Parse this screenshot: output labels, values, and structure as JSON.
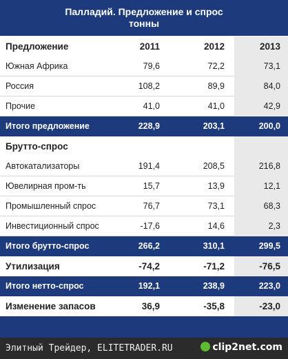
{
  "header": {
    "title": "Палладий. Предложение и спрос",
    "subtitle": "тонны"
  },
  "table": {
    "columns": [
      "Предложение",
      "2011",
      "2012",
      "2013"
    ],
    "rows": [
      [
        "Южная Африка",
        "79,6",
        "72,2",
        "73,1"
      ],
      [
        "Россия",
        "108,2",
        "89,9",
        "84,0"
      ],
      [
        "Прочие",
        "41,0",
        "41,0",
        "42,9"
      ],
      [
        "Итого предложение",
        "228,9",
        "203,1",
        "200,0"
      ],
      [
        "Брутто-спрос"
      ],
      [
        "Автокатализаторы",
        "191,4",
        "208,5",
        "216,8"
      ],
      [
        "Ювелирная пром-ть",
        "15,7",
        "13,9",
        "12,1"
      ],
      [
        "Промышленный спрос",
        "76,7",
        "73,1",
        "68,3"
      ],
      [
        "Инвестиционный спрос",
        "-17,6",
        "14,6",
        "2,3"
      ],
      [
        "Итого брутто-спрос",
        "266,2",
        "310,1",
        "299,5"
      ],
      [
        "Утилизация",
        "-74,2",
        "-71,2",
        "-76,5"
      ],
      [
        "Итого нетто-спрос",
        "192,1",
        "238,9",
        "223,0"
      ],
      [
        "Изменение запасов",
        "36,9",
        "-35,8",
        "-23,0"
      ]
    ]
  },
  "footer": {
    "source": "Элитный Трейдер, ELITETRADER.RU",
    "logo": "clip2net.com"
  }
}
